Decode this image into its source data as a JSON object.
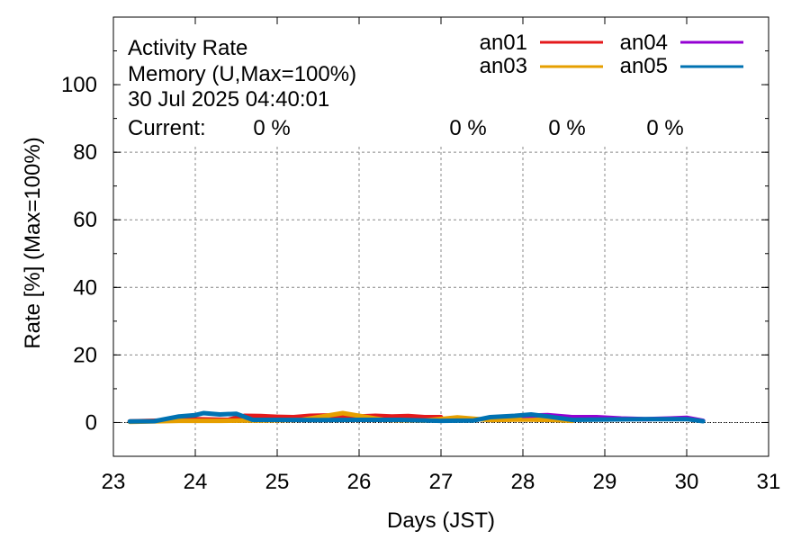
{
  "chart_data": {
    "type": "line",
    "title": "Activity Rate",
    "subtitle": "Memory (U,Max=100%)",
    "timestamp": "30 Jul 2025 04:40:01",
    "current_label": "Current:",
    "xlabel": "Days (JST)",
    "ylabel": "Rate [%]  (Max=100%)",
    "xlim": [
      23,
      31
    ],
    "ylim": [
      -10,
      120
    ],
    "x_ticks": [
      "23",
      "24",
      "25",
      "26",
      "27",
      "28",
      "29",
      "30",
      "31"
    ],
    "y_ticks": [
      "0",
      "20",
      "40",
      "60",
      "80",
      "100"
    ],
    "grid": true,
    "legend_position": "top-right",
    "series": [
      {
        "name": "an01",
        "color": "#e41a1c",
        "current": "0 %",
        "x": [
          23.2,
          23.6,
          24.0,
          24.4,
          24.6,
          24.8,
          25.0,
          25.2,
          25.4,
          25.6,
          25.8,
          26.0,
          26.2,
          26.4,
          26.6,
          26.8,
          27.0
        ],
        "y": [
          0.3,
          0.6,
          1.0,
          0.8,
          2.0,
          1.9,
          1.7,
          1.6,
          2.0,
          2.1,
          1.8,
          1.8,
          2.0,
          1.8,
          1.9,
          1.6,
          1.6
        ]
      },
      {
        "name": "an03",
        "color": "#e69f00",
        "current": "0 %",
        "x": [
          23.2,
          23.8,
          24.3,
          24.8,
          25.3,
          25.8,
          26.3,
          26.8,
          27.2,
          27.6,
          28.0,
          28.4,
          28.6
        ],
        "y": [
          0.2,
          0.5,
          0.5,
          0.6,
          0.8,
          2.8,
          0.8,
          0.6,
          1.5,
          0.7,
          0.9,
          0.7,
          0.5
        ]
      },
      {
        "name": "an04",
        "color": "#9400d3",
        "current": "0 %",
        "x": [
          28.0,
          28.3,
          28.6,
          28.9,
          29.2,
          29.5,
          29.8,
          30.0,
          30.2
        ],
        "y": [
          2.0,
          2.2,
          1.6,
          1.6,
          1.2,
          1.0,
          1.2,
          1.4,
          0.5
        ]
      },
      {
        "name": "an05",
        "color": "#0072b2",
        "current": "0 %",
        "x": [
          23.2,
          23.5,
          23.8,
          24.0,
          24.1,
          24.3,
          24.5,
          24.7,
          25.0,
          25.5,
          26.0,
          26.5,
          27.0,
          27.4,
          27.6,
          27.9,
          28.1,
          28.3,
          28.6,
          29.0,
          29.5,
          30.0,
          30.2
        ],
        "y": [
          0.3,
          0.4,
          1.8,
          2.2,
          2.8,
          2.4,
          2.6,
          0.8,
          0.8,
          0.7,
          0.8,
          0.8,
          0.5,
          0.6,
          1.6,
          2.0,
          2.4,
          1.8,
          0.8,
          0.9,
          1.0,
          1.0,
          0.4
        ]
      }
    ]
  }
}
